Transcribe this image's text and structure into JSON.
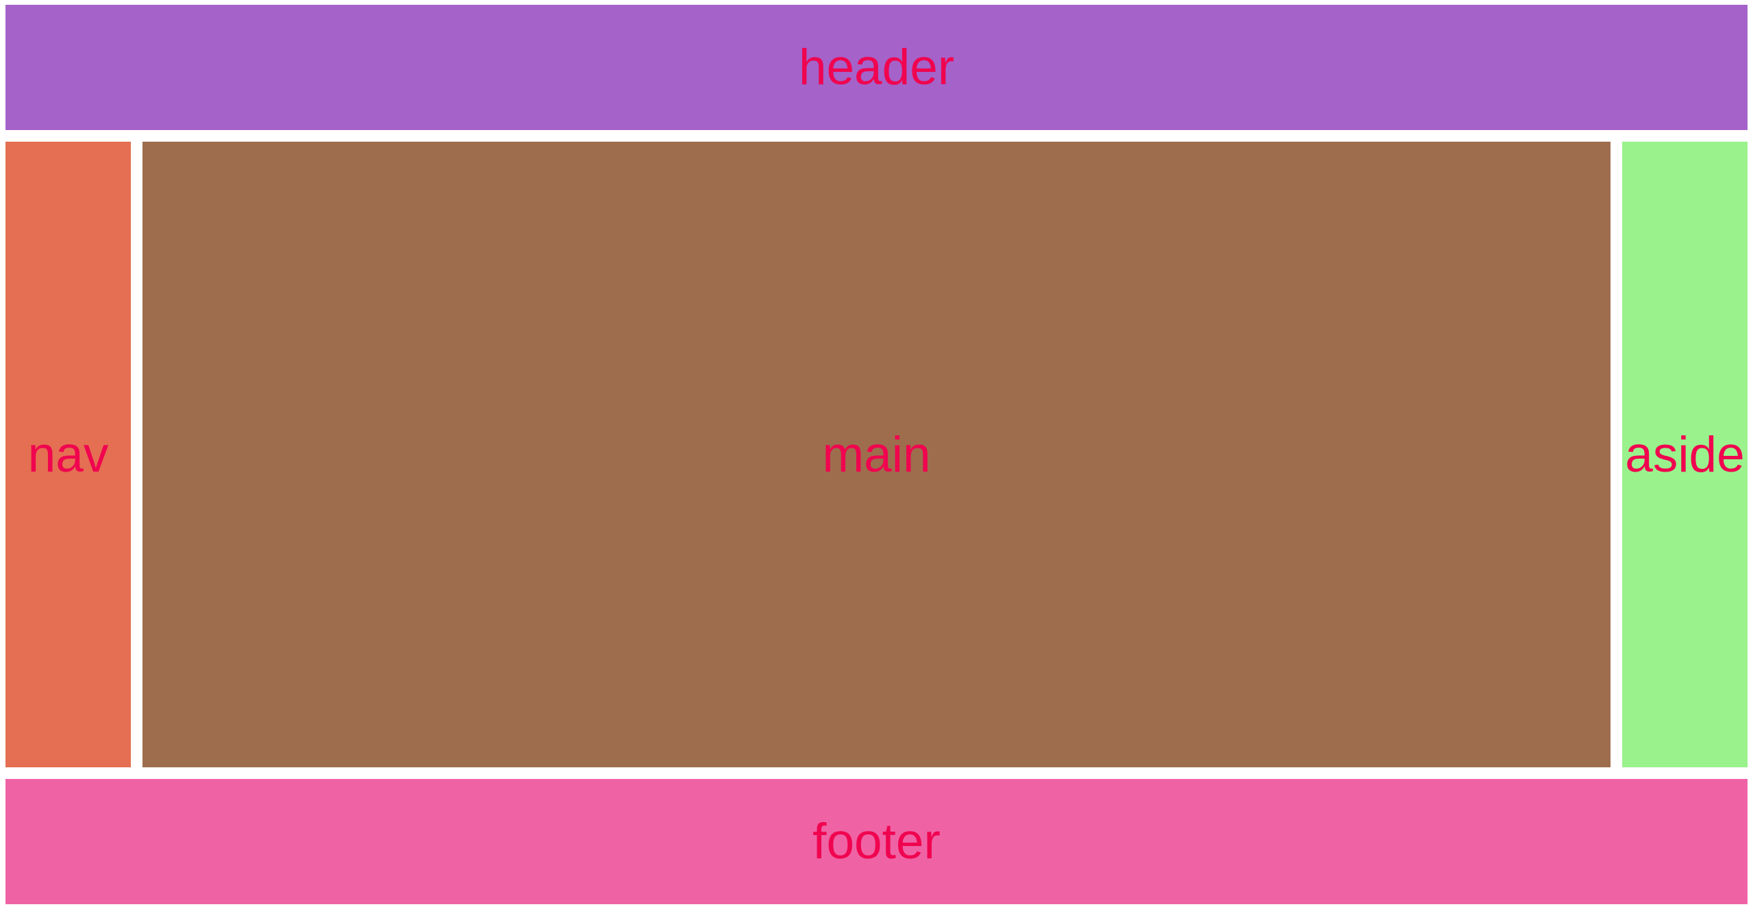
{
  "colors": {
    "header_bg": "#a562c9",
    "nav_bg": "#e46f52",
    "main_bg": "#9e6d4d",
    "aside_bg": "#9af28c",
    "footer_bg": "#ef63a5",
    "label_text": "#f0044f",
    "page_bg": "#ffffff"
  },
  "header": {
    "label": "header"
  },
  "nav": {
    "label": "nav"
  },
  "main": {
    "label": "main"
  },
  "aside": {
    "label": "aside"
  },
  "footer": {
    "label": "footer"
  }
}
